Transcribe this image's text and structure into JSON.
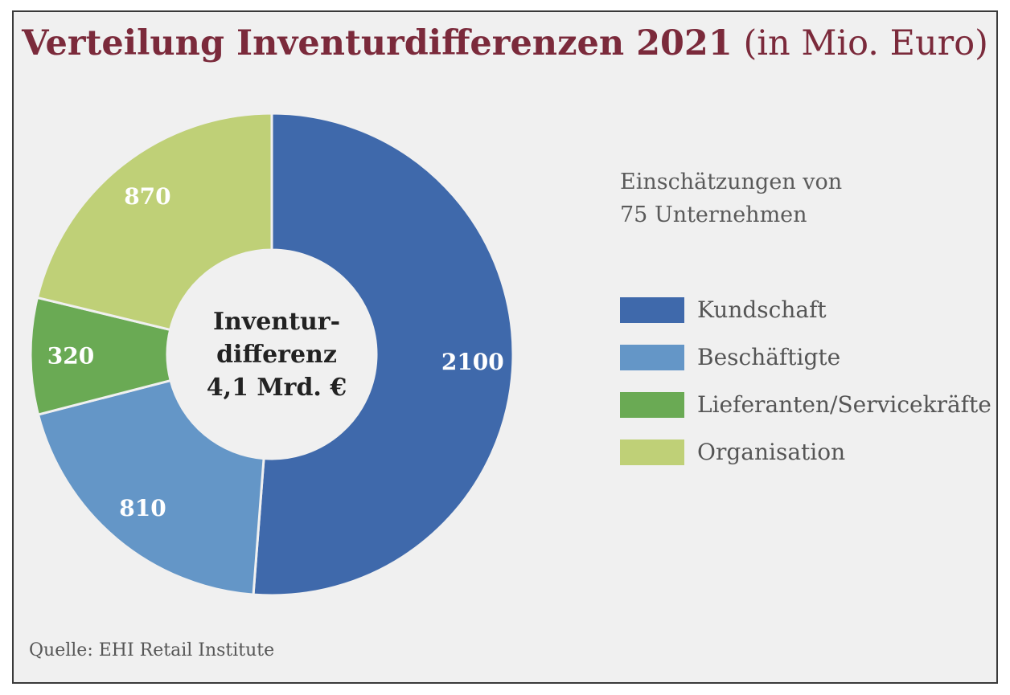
{
  "colors": {
    "title": "#7b2a3b",
    "background": "#f0f0f0"
  },
  "chart_data": {
    "type": "pie",
    "title": "Verteilung Inventurdifferenzen 2021",
    "title_unit": "(in Mio. Euro)",
    "subtitle_lines": [
      "Einschätzungen von",
      "75 Unternehmen"
    ],
    "center_label_lines": [
      "Inventur-",
      "differenz",
      "4,1 Mrd. €"
    ],
    "legend_position": "right",
    "slices": [
      {
        "label": "Kundschaft",
        "value": 2100,
        "display": "2100",
        "color": "#3f69ab"
      },
      {
        "label": "Beschäftigte",
        "value": 810,
        "display": "810",
        "color": "#6496c7"
      },
      {
        "label": "Lieferanten/Servicekräfte",
        "value": 320,
        "display": "320",
        "color": "#6aaa54"
      },
      {
        "label": "Organisation",
        "value": 870,
        "display": "870",
        "color": "#bfd077"
      }
    ],
    "source": "Quelle: EHI Retail Institute"
  }
}
